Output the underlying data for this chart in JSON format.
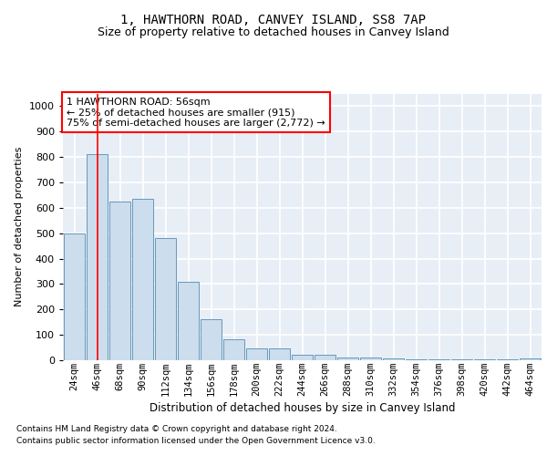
{
  "title": "1, HAWTHORN ROAD, CANVEY ISLAND, SS8 7AP",
  "subtitle": "Size of property relative to detached houses in Canvey Island",
  "xlabel": "Distribution of detached houses by size in Canvey Island",
  "ylabel": "Number of detached properties",
  "footnote1": "Contains HM Land Registry data © Crown copyright and database right 2024.",
  "footnote2": "Contains public sector information licensed under the Open Government Licence v3.0.",
  "categories": [
    "24sqm",
    "46sqm",
    "68sqm",
    "90sqm",
    "112sqm",
    "134sqm",
    "156sqm",
    "178sqm",
    "200sqm",
    "222sqm",
    "244sqm",
    "266sqm",
    "288sqm",
    "310sqm",
    "332sqm",
    "354sqm",
    "376sqm",
    "398sqm",
    "420sqm",
    "442sqm",
    "464sqm"
  ],
  "values": [
    500,
    810,
    625,
    635,
    480,
    310,
    162,
    82,
    45,
    45,
    22,
    22,
    10,
    10,
    8,
    5,
    3,
    2,
    2,
    2,
    8
  ],
  "bar_color": "#ccdded",
  "bar_edge_color": "#6699bb",
  "red_line_x": 1,
  "annotation_text": "1 HAWTHORN ROAD: 56sqm\n← 25% of detached houses are smaller (915)\n75% of semi-detached houses are larger (2,772) →",
  "ylim": [
    0,
    1050
  ],
  "plot_bg_color": "#e8eef6",
  "grid_color": "#ffffff",
  "title_fontsize": 10,
  "subtitle_fontsize": 9,
  "xlabel_fontsize": 8.5,
  "ylabel_fontsize": 8,
  "footnote_fontsize": 6.5,
  "tick_fontsize": 7.5,
  "annotation_fontsize": 8
}
